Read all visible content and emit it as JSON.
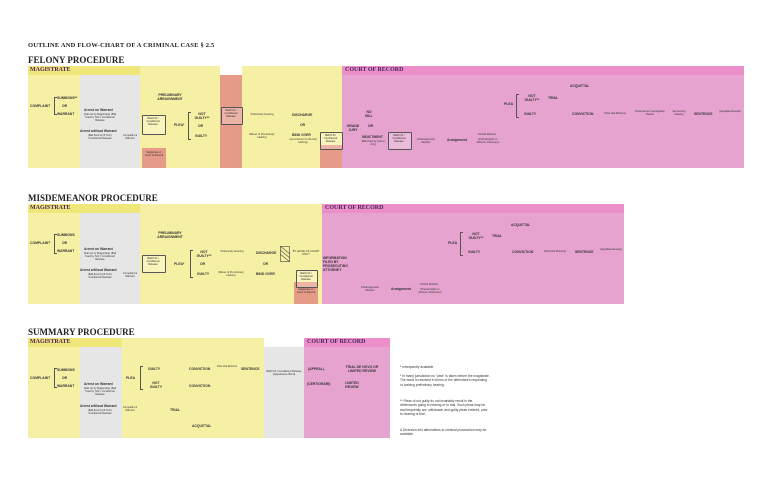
{
  "doc_title": "OUTLINE AND FLOW-CHART OF A CRIMINAL CASE  § 2.5",
  "felony": {
    "title": "FELONY PROCEDURE",
    "magistrate": "MAGISTRATE",
    "court": "COURT OF RECORD",
    "complaint": "COMPLAINT",
    "summons": "SUMMONS**",
    "or1": "OR",
    "warrant": "WARRANT",
    "arrest_wo": "Arrest on Warrant",
    "arrest_wo_sub": "(bail set by Magistrate) (Bail fixed by N.R.) Conditional Release",
    "arrest_w": "Arrest without Warrant",
    "arrest_w_sub": "(Bail fixed by B.N.R.) Conditional Release",
    "complaint_warrant": "Complaint & Warrant",
    "bail1": "Bail/O.R./ Conditional Release",
    "magistrate_court": "Magistrate or Court of Record",
    "prelim_arr": "PRELIMINARY ARRAIGNMENT",
    "plea": "PLEA*",
    "not_guilty": "NOT GUILTY**",
    "or2": "OR",
    "guilty": "GUILTY",
    "bail2": "Bail/O.R./ Conditional Release",
    "prelim_hearing": "Preliminary Hearing",
    "waiver": "Waiver of Pre-liminary Hearing",
    "discharge": "DISCHARGE",
    "or3": "OR",
    "bind_over": "BIND OVER",
    "bind_over_sub": "(commitment to the bail hearing)",
    "bail3": "Bail/O.R./ Conditional Release",
    "grand_jury": "GRAND JURY",
    "no_bill": "NO BILL",
    "or4": "OR",
    "indictment": "INDICTMENT",
    "indictment_sub": "(Bail fixed by Grand Jury)",
    "bail4": "Bail/O.R./ Conditional Release",
    "prearraignment": "Prearraignment Motions",
    "arraignment": "Arraignment",
    "pretrial": "Pretrial Motions",
    "pretrial_sub": "(Pretrial rights or Motions, Discovery)",
    "plea2": "PLEA",
    "not_guilty2": "NOT GUILTY**",
    "trial": "TRIAL",
    "acquittal": "ACQUITTAL",
    "guilty2": "GUILTY",
    "conviction": "CONVICTION",
    "post_trial": "(Post-trial Motions)",
    "presentence": "Presentence Investigation Report",
    "sentencing": "Sentencing Hearing",
    "sentence": "SENTENCE",
    "appeal": "(Appellate Review)"
  },
  "misd": {
    "title": "MISDEMEANOR PROCEDURE",
    "magistrate": "MAGISTRATE",
    "court": "COURT OF RECORD",
    "complaint": "COMPLAINT",
    "summons": "SUMMONS",
    "or1": "OR",
    "warrant": "WARRANT",
    "arrest_wo": "Arrest on Warrant",
    "arrest_wo_sub": "(bail set by Magistrate) (Bail fixed by N.R.) Conditional Release",
    "arrest_w": "Arrest without Warrant",
    "arrest_w_sub": "(Bail fixed by B.N.R.) Conditional Release",
    "complaint_warrant": "Complaint & Warrant",
    "bail1": "Bail/O.R./ Conditional Release",
    "prelim_arr": "PRELIMINARY ARRAIGNMENT",
    "plea": "PLEA*",
    "not_guilty": "NOT GUILTY**",
    "or2": "OR",
    "guilty": "GUILTY",
    "prelim_hearing": "Preliminary Hearing",
    "waiver": "Waiver of Pre-liminary Hearing",
    "discharge": "DISCHARGE",
    "or3": "OR",
    "bind_over": "BIND OVER",
    "by_leave": "BY LEAVE OF COURT ONLY*",
    "bail3": "Bail/O.R./ Conditional Release",
    "magistrate_court": "Magistrate or Court of Record",
    "information": "INFORMATION FILED BY PROSECUTING ATTORNEY",
    "prearraignment": "Prearraignment Motions",
    "arraignment": "Arraignment",
    "pretrial": "Pretrial Motions",
    "pretrial_sub": "(Pretrial rights or Motions, Discovery)",
    "plea2": "PLEA",
    "not_guilty2": "NOT GUILTY**",
    "trial": "TRIAL",
    "acquittal": "ACQUITTAL",
    "guilty2": "GUILTY",
    "conviction": "CONVICTION",
    "post_trial": "(Post-trial Motions)",
    "sentence": "SENTENCE",
    "appeal": "(Appellate Review)"
  },
  "summ": {
    "title": "SUMMARY PROCEDURE",
    "magistrate": "MAGISTRATE",
    "court": "COURT OF RECORD",
    "complaint": "COMPLAINT",
    "summons": "SUMMONS",
    "or1": "OR",
    "warrant": "WARRANT",
    "arrest_wo": "Arrest on Warrant",
    "arrest_wo_sub": "(bail set by Magistrate) (Bail fixed by N.R.) Conditional Release",
    "arrest_w": "Arrest without Warrant",
    "arrest_w_sub": "(Bail fixed by B.N.R.) Conditional Release",
    "complaint_warrant": "Complaint & Warrant",
    "plea": "PLEA",
    "guilty": "GUILTY",
    "not_guilty": "NOT GUILTY",
    "trial": "TRIAL",
    "conviction": "CONVICTION",
    "conviction2": "CONVICTION",
    "post_trial": "Post-trial Motions",
    "sentence": "SENTENCE",
    "acquittal": "ACQUITTAL",
    "bail": "Bail/O.R./ Conditional Release (Appearance Bond)",
    "appeal": "(APPEAL)",
    "certiorari": "(CERTIORARI)",
    "de_novo": "TRIAL DE NOVO OR LIMITED REVIEW",
    "limited": "LIMITED REVIEW"
  },
  "notes": {
    "n1": "* Infrequently available",
    "n2": "* In many jurisdiction no \"plea\" is taken before the magistrate. The issue is resolved in terms of the defendant's requesting or waiving preliminary hearing.",
    "n3": "** Pleas of not guilty do not invariably result in the defendant's going to hearing or to trial. Such pleas may be and frequently are, withdrawn and guilty pleas entered, prior to hearing or trial.",
    "n4": "Δ Diversion into alternatives to criminal prosecution may be available."
  }
}
